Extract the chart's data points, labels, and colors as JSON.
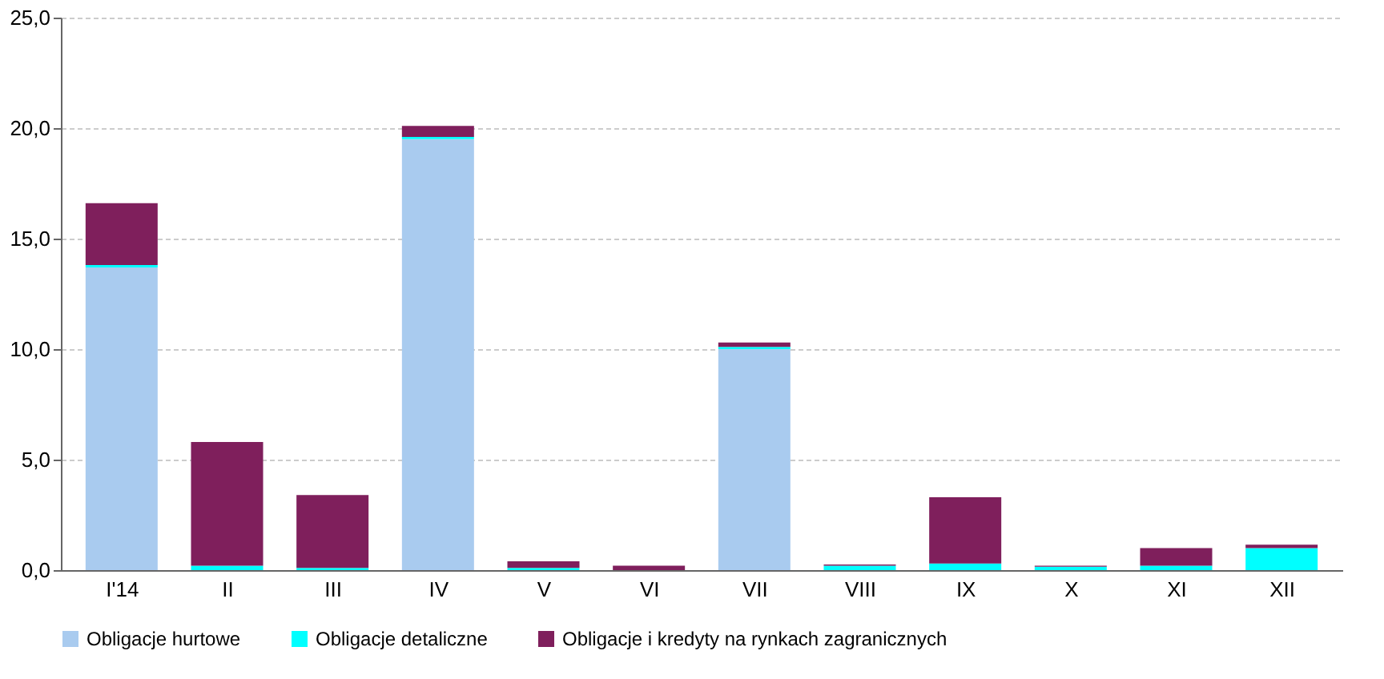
{
  "chart_data": {
    "type": "bar",
    "stacked": true,
    "categories": [
      "I'14",
      "II",
      "III",
      "IV",
      "V",
      "VI",
      "VII",
      "VIII",
      "IX",
      "X",
      "XI",
      "XII"
    ],
    "series": [
      {
        "name": "Obligacje hurtowe",
        "color": "#a9cbef",
        "values": [
          13.7,
          0,
          0,
          19.5,
          0,
          0,
          10.0,
          0,
          0,
          0,
          0,
          0
        ]
      },
      {
        "name": "Obligacje detaliczne",
        "color": "#00ffff",
        "values": [
          0.1,
          0.2,
          0.1,
          0.1,
          0.1,
          0,
          0.1,
          0.2,
          0.3,
          0.15,
          0.2,
          1.0
        ]
      },
      {
        "name": "Obligacje i kredyty na rynkach zagranicznych",
        "color": "#7f1f5c",
        "values": [
          2.8,
          5.6,
          3.3,
          0.5,
          0.3,
          0.2,
          0.2,
          0.05,
          3.0,
          0.05,
          0.8,
          0.15
        ]
      }
    ],
    "ylim": [
      0,
      25
    ],
    "yticks": [
      {
        "value": 0,
        "label": "0,0"
      },
      {
        "value": 5,
        "label": "5,0"
      },
      {
        "value": 10,
        "label": "10,0"
      },
      {
        "value": 15,
        "label": "15,0"
      },
      {
        "value": 20,
        "label": "20,0"
      },
      {
        "value": 25,
        "label": "25,0"
      }
    ],
    "grid": "y",
    "legend": "bottom"
  }
}
